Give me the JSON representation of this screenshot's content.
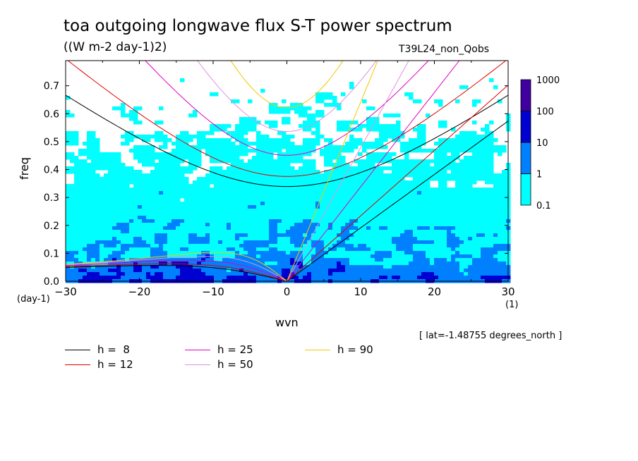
{
  "chart_data": {
    "type": "heatmap",
    "title": "toa outgoing longwave flux S-T power spectrum",
    "units": "((W m-2 day-1)2)",
    "run_name": "T39L24_non_Qobs",
    "xlabel": "wvn",
    "ylabel": "freq",
    "x_unit": "(1)",
    "y_unit": "(day-1)",
    "xlim": [
      -30,
      30
    ],
    "ylim": [
      0.0,
      0.79
    ],
    "xticks": [
      "-30",
      "-20",
      "-10",
      "0",
      "10",
      "20",
      "30"
    ],
    "yticks": [
      "0.0",
      "0.1",
      "0.2",
      "0.3",
      "0.4",
      "0.5",
      "0.6",
      "0.7"
    ],
    "colorbar": {
      "levels": [
        "0.1",
        "1",
        "10",
        "100",
        "1000"
      ],
      "colors": [
        "#00ffff",
        "#0080ff",
        "#0000d0",
        "#4000a0"
      ]
    },
    "annotation": "[ lat=-1.48755 degrees_north ]",
    "dispersion_curves": [
      {
        "label": "h =  8",
        "h": 8,
        "color": "#000000"
      },
      {
        "label": "h = 12",
        "h": 12,
        "color": "#e00000"
      },
      {
        "label": "h = 25",
        "h": 25,
        "color": "#e000c0"
      },
      {
        "label": "h = 50",
        "h": 50,
        "color": "#e090e0"
      },
      {
        "label": "h = 90",
        "h": 90,
        "color": "#f0c800"
      }
    ]
  }
}
